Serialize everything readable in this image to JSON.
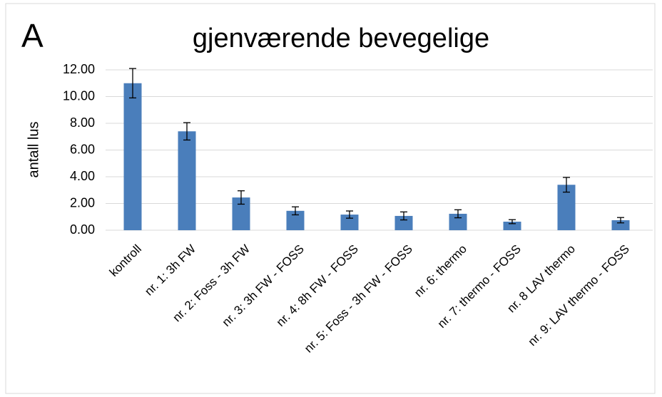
{
  "chart_data": {
    "type": "bar",
    "title": "gjenværende bevegelige",
    "annotation": "A",
    "y_label": "antall lus",
    "categories": [
      "kontroll",
      "nr. 1: 3h FW",
      "nr. 2: Foss - 3h FW",
      "nr. 3: 3h FW - FOSS",
      "nr. 4: 8h FW - FOSS",
      "nr. 5: Foss - 3h FW - FOSS",
      "nr. 6: thermo",
      "nr. 7: thermo - FOSS",
      "nr. 8 LAV thermo",
      "nr. 9: LAV thermo - FOSS"
    ],
    "values": [
      11.0,
      7.4,
      2.45,
      1.45,
      1.17,
      1.07,
      1.23,
      0.64,
      3.4,
      0.75
    ],
    "errors": [
      1.1,
      0.65,
      0.5,
      0.3,
      0.27,
      0.3,
      0.3,
      0.15,
      0.55,
      0.2
    ],
    "color": "#4a7ebb",
    "ylim": [
      0,
      12
    ],
    "yticks": [
      {
        "value": 0,
        "label": "0.00"
      },
      {
        "value": 2,
        "label": "2.00"
      },
      {
        "value": 4,
        "label": "4.00"
      },
      {
        "value": 6,
        "label": "6.00"
      },
      {
        "value": 8,
        "label": "8.00"
      },
      {
        "value": 10,
        "label": "10.00"
      },
      {
        "value": 12,
        "label": "12.00"
      }
    ],
    "grid": true
  }
}
